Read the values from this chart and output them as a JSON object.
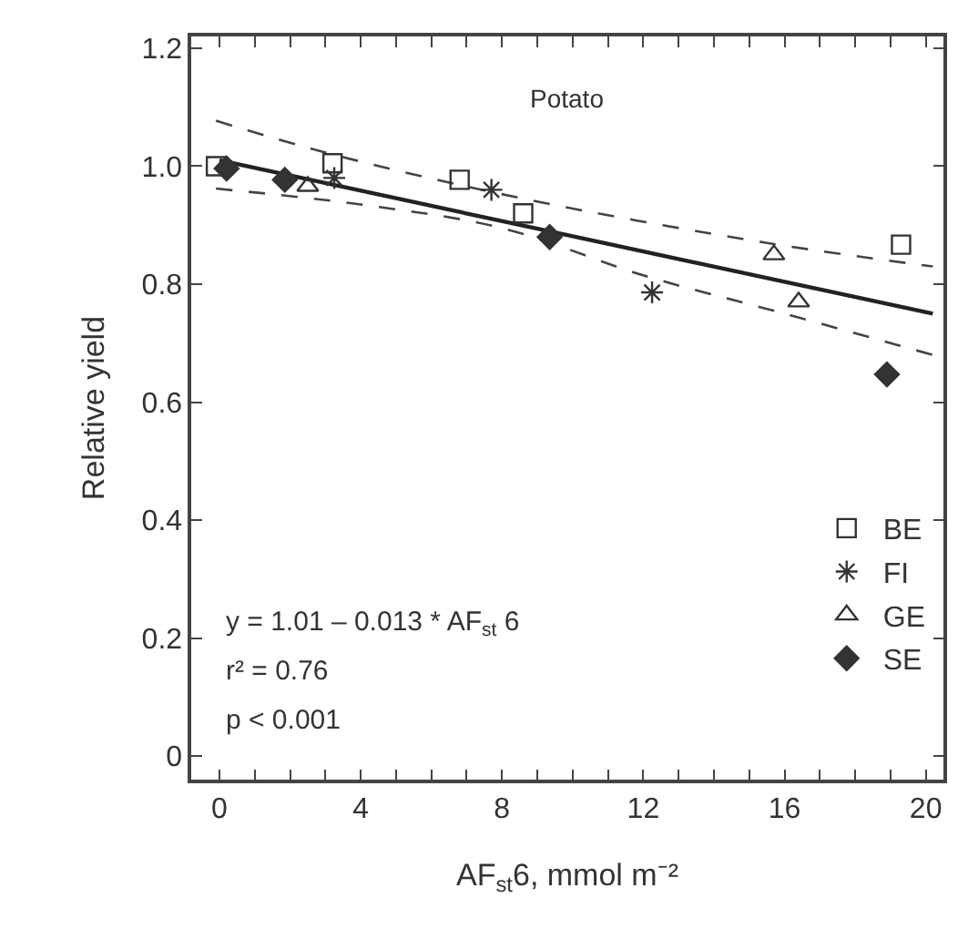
{
  "chart_data": {
    "type": "scatter",
    "xlabel": "AF$_{st}$6, mmol m⁻²",
    "ylabel": "Relative yield",
    "annotations": [
      "Potato",
      "y = 1.01 – 0.013 * AF$_{st}$ 6",
      "r² = 0.76",
      "p < 0.001"
    ],
    "xlim": [
      -0.8,
      20.5
    ],
    "ylim": [
      -0.04,
      1.22
    ],
    "xticks": [
      0,
      {
        "value": 1,
        "label": null
      },
      {
        "value": 2,
        "label": null
      },
      {
        "value": 3,
        "label": null
      },
      4,
      {
        "value": 5,
        "label": null
      },
      {
        "value": 6,
        "label": null
      },
      {
        "value": 7,
        "label": null
      },
      8,
      {
        "value": 9,
        "label": null
      },
      {
        "value": 10,
        "label": null
      },
      {
        "value": 11,
        "label": null
      },
      12,
      {
        "value": 13,
        "label": null
      },
      {
        "value": 14,
        "label": null
      },
      {
        "value": 15,
        "label": null
      },
      16,
      {
        "value": 17,
        "label": null
      },
      {
        "value": 18,
        "label": null
      },
      {
        "value": 19,
        "label": null
      },
      20
    ],
    "yticks": [
      0,
      0.2,
      0.4,
      0.6,
      0.8,
      {
        "value": 1,
        "label": "1.0"
      },
      1.2
    ],
    "grid": false,
    "legend": "bottom right",
    "series": [
      {
        "name": "BE",
        "color": "#333333",
        "marker": "square",
        "x": [
          -0.1,
          3.2,
          6.8,
          8.6,
          19.3
        ],
        "values": [
          1.0,
          1.005,
          0.977,
          0.92,
          0.867
        ]
      },
      {
        "name": "FI",
        "color": "#333333",
        "marker": "cross",
        "x": [
          3.25,
          7.7,
          12.25
        ],
        "values": [
          0.98,
          0.96,
          0.786
        ]
      },
      {
        "name": "GE",
        "color": "#333333",
        "marker": "triangle",
        "x": [
          2.5,
          15.7,
          16.4
        ],
        "values": [
          0.966,
          0.85,
          0.77
        ]
      },
      {
        "name": "SE",
        "color": "#333333",
        "marker": "diamond",
        "x": [
          0.2,
          1.85,
          9.35,
          18.9
        ],
        "values": [
          0.996,
          0.977,
          0.88,
          0.647
        ]
      },
      {
        "type": "line",
        "color": "#222222",
        "line_style": "solid",
        "x": [
          0,
          20.2
        ],
        "values": [
          1.01,
          0.75
        ]
      },
      {
        "type": "line",
        "color": "#444444",
        "line_style": "dashed",
        "x": [
          -0.1,
          3.2,
          8.6,
          15.5,
          20.2
        ],
        "values": [
          1.077,
          1.02,
          0.945,
          0.87,
          0.83
        ]
      },
      {
        "type": "line",
        "color": "#444444",
        "line_style": "dashed",
        "x": [
          -0.1,
          4,
          8,
          12,
          16,
          20.2
        ],
        "values": [
          0.962,
          0.935,
          0.895,
          0.815,
          0.75,
          0.68
        ]
      }
    ]
  }
}
